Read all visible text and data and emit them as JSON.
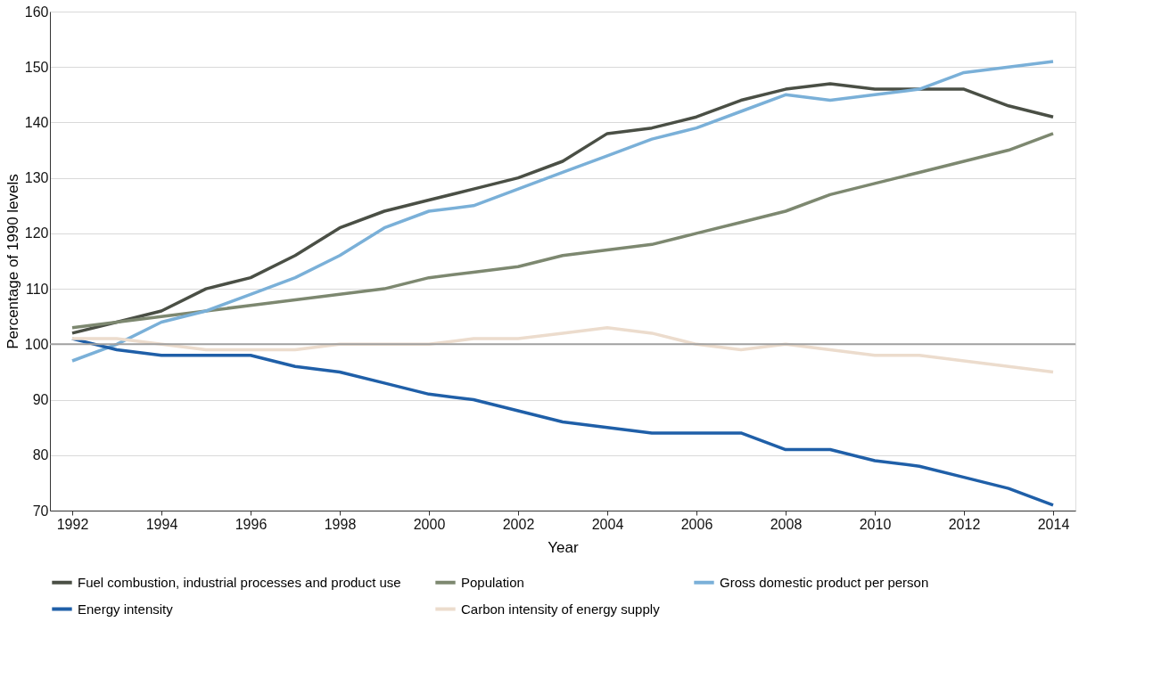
{
  "chart_data": {
    "type": "line",
    "xlabel": "Year",
    "ylabel": "Percentage of 1990 levels",
    "x": [
      1992,
      1993,
      1994,
      1995,
      1996,
      1997,
      1998,
      1999,
      2000,
      2001,
      2002,
      2003,
      2004,
      2005,
      2006,
      2007,
      2008,
      2009,
      2010,
      2011,
      2012,
      2013,
      2014
    ],
    "xlim": [
      1991.5,
      2014.5
    ],
    "xticks": [
      1992,
      1994,
      1996,
      1998,
      2000,
      2002,
      2004,
      2006,
      2008,
      2010,
      2012,
      2014
    ],
    "ylim": [
      70,
      160
    ],
    "yticks": [
      70,
      80,
      90,
      100,
      110,
      120,
      130,
      140,
      150,
      160
    ],
    "grid": "y",
    "legend": "bottom",
    "marker": "none",
    "line_style": "solid",
    "ref_lines": [
      {
        "axis": "y",
        "value": 100,
        "label": null,
        "color": "#a0a0a0"
      }
    ],
    "series": [
      {
        "name": "Fuel combustion, industrial processes and product use",
        "color": "#4a4f45",
        "values": [
          102,
          104,
          106,
          110,
          112,
          116,
          121,
          124,
          126,
          128,
          130,
          133,
          138,
          139,
          141,
          144,
          146,
          147,
          146,
          146,
          146,
          143,
          141
        ]
      },
      {
        "name": "Population",
        "color": "#7d8870",
        "values": [
          103,
          104,
          105,
          106,
          107,
          108,
          109,
          110,
          112,
          113,
          114,
          116,
          117,
          118,
          120,
          122,
          124,
          127,
          129,
          131,
          133,
          135,
          138
        ]
      },
      {
        "name": "Gross domestic product per person",
        "color": "#7ab0d8",
        "values": [
          97,
          100,
          104,
          106,
          109,
          112,
          116,
          121,
          124,
          125,
          128,
          131,
          134,
          137,
          139,
          142,
          145,
          144,
          145,
          146,
          149,
          150,
          151
        ]
      },
      {
        "name": "Energy intensity",
        "color": "#1f5fa8",
        "values": [
          101,
          99,
          98,
          98,
          98,
          96,
          95,
          93,
          91,
          90,
          88,
          86,
          85,
          84,
          84,
          84,
          81,
          81,
          79,
          78,
          76,
          74,
          71
        ]
      },
      {
        "name": "Carbon intensity of energy supply",
        "color": "#ecdccd",
        "values": [
          101,
          101,
          100,
          99,
          99,
          99,
          100,
          100,
          100,
          101,
          101,
          102,
          103,
          102,
          100,
          99,
          100,
          99,
          98,
          98,
          97,
          96,
          95
        ]
      }
    ]
  }
}
